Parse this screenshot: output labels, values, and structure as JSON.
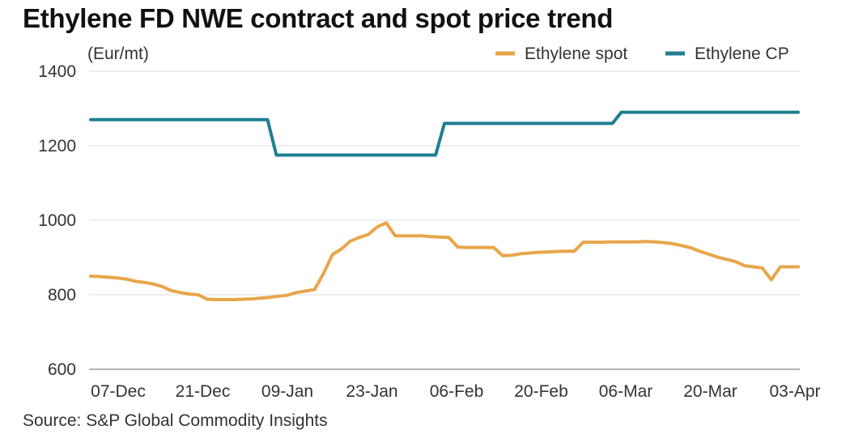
{
  "title": "Ethylene FD NWE contract and spot price trend",
  "source": "Source: S&P Global Commodity Insights",
  "chart_data": {
    "type": "line",
    "ylabel": "(Eur/mt)",
    "ylim": [
      600,
      1400
    ],
    "yticks": [
      "600",
      "800",
      "1000",
      "1200",
      "1400"
    ],
    "xlabels": [
      "07-Dec",
      "21-Dec",
      "09-Jan",
      "23-Jan",
      "06-Feb",
      "20-Feb",
      "06-Mar",
      "20-Mar",
      "03-Apr"
    ],
    "grid": true,
    "legend": "top-right",
    "series": [
      {
        "name": "Ethylene spot",
        "color": "#E8A54A",
        "values": [
          850,
          849,
          847,
          845,
          842,
          836,
          833,
          829,
          822,
          811,
          806,
          802,
          800,
          788,
          787,
          787,
          787,
          788,
          789,
          791,
          793,
          796,
          799,
          806,
          810,
          814,
          857,
          908,
          923,
          944,
          954,
          962,
          982,
          993,
          958,
          958,
          958,
          958,
          956,
          955,
          954,
          928,
          927,
          927,
          927,
          927,
          905,
          906,
          910,
          912,
          914,
          915,
          916,
          917,
          917,
          941,
          941,
          941,
          942,
          942,
          942,
          942,
          943,
          942,
          940,
          937,
          932,
          926,
          917,
          909,
          901,
          895,
          889,
          878,
          875,
          872,
          840,
          875,
          875,
          875
        ]
      },
      {
        "name": "Ethylene CP",
        "color": "#1E8091",
        "values": [
          1270,
          1270,
          1270,
          1270,
          1270,
          1270,
          1270,
          1270,
          1270,
          1270,
          1270,
          1270,
          1270,
          1270,
          1270,
          1270,
          1270,
          1270,
          1270,
          1270,
          1270,
          1175,
          1175,
          1175,
          1175,
          1175,
          1175,
          1175,
          1175,
          1175,
          1175,
          1175,
          1175,
          1175,
          1175,
          1175,
          1175,
          1175,
          1175,
          1175,
          1260,
          1260,
          1260,
          1260,
          1260,
          1260,
          1260,
          1260,
          1260,
          1260,
          1260,
          1260,
          1260,
          1260,
          1260,
          1260,
          1260,
          1260,
          1260,
          1260,
          1290,
          1290,
          1290,
          1290,
          1290,
          1290,
          1290,
          1290,
          1290,
          1290,
          1290,
          1290,
          1290,
          1290,
          1290,
          1290,
          1290,
          1290,
          1290,
          1290,
          1290
        ]
      }
    ]
  }
}
